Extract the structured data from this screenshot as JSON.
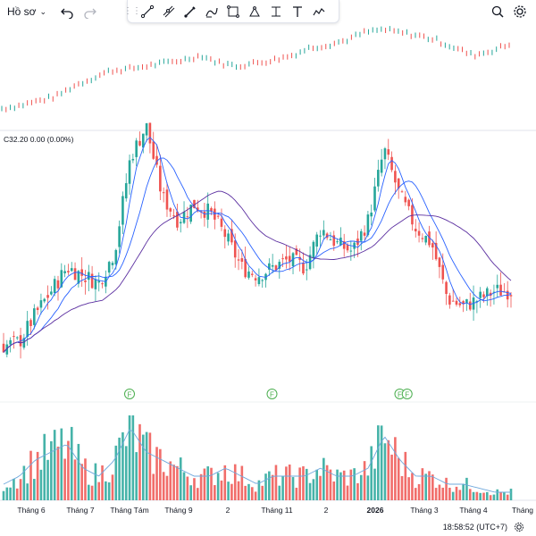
{
  "toolbar": {
    "profile_label": "Hồ sơ",
    "profile_chevron": "chevron-down-icon",
    "left_icons": [
      "undo-icon",
      "redo-icon"
    ],
    "tools": [
      "trend-line-icon",
      "channel-icon",
      "pen-brush-icon",
      "curve-icon",
      "rectangle-icon",
      "path-icon",
      "fixed-range-icon",
      "text-icon",
      "forecast-icon"
    ],
    "right_icons": [
      "magic-search-icon",
      "gear-icon"
    ]
  },
  "indicator": {
    "label": "C32.20  0.00 (0.00%)"
  },
  "time": {
    "label": "18:58:52 (UTC+7)"
  },
  "colors": {
    "up": "#26a69a",
    "down": "#ef5350",
    "ma_blue": "#2962ff",
    "ma_purple": "#5b2fa0",
    "volume_ma": "#6fa8dc",
    "flag": "#4caf50"
  },
  "chart_data": {
    "type": "candlestick",
    "x_labels": [
      "Tháng 6",
      "Tháng 7",
      "Tháng Tám",
      "Tháng 9",
      "2",
      "Tháng 11",
      "2",
      "2026",
      "Tháng 3",
      "Tháng 4",
      "Tháng"
    ],
    "event_markers": [
      {
        "label": "F",
        "month_pos": 2.0
      },
      {
        "label": "F",
        "month_pos": 4.9
      },
      {
        "label": "F",
        "month_pos": 7.5
      },
      {
        "label": "F",
        "month_pos": 7.65
      }
    ],
    "price_path": [
      6,
      6.5,
      10,
      13,
      16,
      15,
      14,
      18,
      30,
      34,
      25,
      22,
      24,
      23,
      20,
      16,
      15,
      16,
      17,
      16,
      21,
      19,
      18,
      22,
      31,
      25,
      21,
      19,
      12,
      11,
      12,
      13,
      13
    ],
    "volume_profile": [
      2,
      3,
      5,
      6,
      7,
      4,
      3,
      5,
      9,
      6,
      5,
      4,
      3,
      3,
      4,
      3,
      2,
      3,
      3,
      3,
      4,
      3,
      3,
      4,
      8,
      5,
      3,
      3,
      2,
      2,
      1.5,
      1,
      1
    ],
    "overview_path": [
      20,
      22,
      25,
      28,
      35,
      40,
      45,
      46,
      48,
      50,
      52,
      55,
      50,
      48,
      50,
      52,
      55,
      60,
      62,
      65,
      70,
      72,
      70,
      68,
      65,
      60,
      55,
      58,
      62
    ],
    "moving_averages": [
      "short (blue)",
      "medium (blue)",
      "long (purple)"
    ]
  }
}
